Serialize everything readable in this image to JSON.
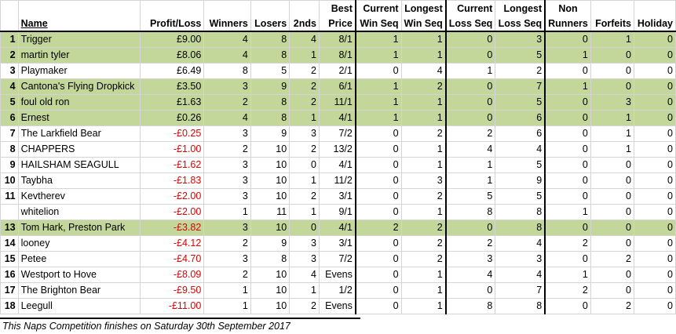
{
  "headers": {
    "name": "Name",
    "profit": "Profit/Loss",
    "winners": "Winners",
    "losers": "Losers",
    "seconds": "2nds",
    "best_top": "Best",
    "best_bottom": "Price",
    "cur_win_top": "Current",
    "cur_win_bottom": "Win Seq",
    "long_win_top": "Longest",
    "long_win_bottom": "Win Seq",
    "cur_loss_top": "Current",
    "cur_loss_bottom": "Loss Seq",
    "long_loss_top": "Longest",
    "long_loss_bottom": "Loss Seq",
    "nonrun_top": "Non",
    "nonrun_bottom": "Runners",
    "forfeits": "Forfeits",
    "holiday": "Holiday"
  },
  "rows": [
    {
      "pos": "1",
      "name": "Trigger",
      "profit": "£9.00",
      "w": "4",
      "l": "8",
      "s": "4",
      "best": "8/1",
      "cw": "1",
      "lw": "1",
      "cl": "0",
      "ll": "3",
      "nr": "0",
      "f": "1",
      "h": "0",
      "green": true,
      "neg": false
    },
    {
      "pos": "2",
      "name": "martin tyler",
      "profit": "£8.06",
      "w": "4",
      "l": "8",
      "s": "1",
      "best": "8/1",
      "cw": "1",
      "lw": "1",
      "cl": "0",
      "ll": "5",
      "nr": "1",
      "f": "0",
      "h": "0",
      "green": true,
      "neg": false
    },
    {
      "pos": "3",
      "name": "Playmaker",
      "profit": "£6.49",
      "w": "8",
      "l": "5",
      "s": "2",
      "best": "2/1",
      "cw": "0",
      "lw": "4",
      "cl": "1",
      "ll": "2",
      "nr": "0",
      "f": "0",
      "h": "0",
      "green": false,
      "neg": false
    },
    {
      "pos": "4",
      "name": "Cantona's Flying Dropkick",
      "profit": "£3.50",
      "w": "3",
      "l": "9",
      "s": "2",
      "best": "6/1",
      "cw": "1",
      "lw": "2",
      "cl": "0",
      "ll": "7",
      "nr": "1",
      "f": "0",
      "h": "0",
      "green": true,
      "neg": false
    },
    {
      "pos": "5",
      "name": "foul old ron",
      "profit": "£1.63",
      "w": "2",
      "l": "8",
      "s": "2",
      "best": "11/1",
      "cw": "1",
      "lw": "1",
      "cl": "0",
      "ll": "5",
      "nr": "0",
      "f": "3",
      "h": "0",
      "green": true,
      "neg": false
    },
    {
      "pos": "6",
      "name": "Ernest",
      "profit": "£0.26",
      "w": "4",
      "l": "8",
      "s": "1",
      "best": "4/1",
      "cw": "1",
      "lw": "1",
      "cl": "0",
      "ll": "6",
      "nr": "0",
      "f": "1",
      "h": "0",
      "green": true,
      "neg": false
    },
    {
      "pos": "7",
      "name": "The Larkfield Bear",
      "profit": "-£0.25",
      "w": "3",
      "l": "9",
      "s": "3",
      "best": "7/2",
      "cw": "0",
      "lw": "2",
      "cl": "2",
      "ll": "6",
      "nr": "0",
      "f": "1",
      "h": "0",
      "green": false,
      "neg": true
    },
    {
      "pos": "8",
      "name": "CHAPPERS",
      "profit": "-£1.00",
      "w": "2",
      "l": "10",
      "s": "2",
      "best": "13/2",
      "cw": "0",
      "lw": "1",
      "cl": "4",
      "ll": "4",
      "nr": "0",
      "f": "1",
      "h": "0",
      "green": false,
      "neg": true
    },
    {
      "pos": "9",
      "name": "HAILSHAM SEAGULL",
      "profit": "-£1.62",
      "w": "3",
      "l": "10",
      "s": "0",
      "best": "4/1",
      "cw": "0",
      "lw": "1",
      "cl": "1",
      "ll": "5",
      "nr": "0",
      "f": "0",
      "h": "0",
      "green": false,
      "neg": true
    },
    {
      "pos": "10",
      "name": "Taybha",
      "profit": "-£1.83",
      "w": "3",
      "l": "10",
      "s": "1",
      "best": "11/2",
      "cw": "0",
      "lw": "3",
      "cl": "1",
      "ll": "9",
      "nr": "0",
      "f": "0",
      "h": "0",
      "green": false,
      "neg": true
    },
    {
      "pos": "11",
      "name": "Kevtherev",
      "profit": "-£2.00",
      "w": "3",
      "l": "10",
      "s": "2",
      "best": "3/1",
      "cw": "0",
      "lw": "2",
      "cl": "5",
      "ll": "5",
      "nr": "0",
      "f": "0",
      "h": "0",
      "green": false,
      "neg": true
    },
    {
      "pos": "",
      "name": "whitelion",
      "profit": "-£2.00",
      "w": "1",
      "l": "11",
      "s": "1",
      "best": "9/1",
      "cw": "0",
      "lw": "1",
      "cl": "8",
      "ll": "8",
      "nr": "1",
      "f": "0",
      "h": "0",
      "green": false,
      "neg": true
    },
    {
      "pos": "13",
      "name": "Tom Hark, Preston Park",
      "profit": "-£3.82",
      "w": "3",
      "l": "10",
      "s": "0",
      "best": "4/1",
      "cw": "2",
      "lw": "2",
      "cl": "0",
      "ll": "8",
      "nr": "0",
      "f": "0",
      "h": "0",
      "green": true,
      "neg": true
    },
    {
      "pos": "14",
      "name": "looney",
      "profit": "-£4.12",
      "w": "2",
      "l": "9",
      "s": "3",
      "best": "3/1",
      "cw": "0",
      "lw": "2",
      "cl": "2",
      "ll": "4",
      "nr": "2",
      "f": "0",
      "h": "0",
      "green": false,
      "neg": true
    },
    {
      "pos": "15",
      "name": "Petee",
      "profit": "-£4.70",
      "w": "3",
      "l": "8",
      "s": "3",
      "best": "7/2",
      "cw": "0",
      "lw": "2",
      "cl": "3",
      "ll": "3",
      "nr": "0",
      "f": "2",
      "h": "0",
      "green": false,
      "neg": true
    },
    {
      "pos": "16",
      "name": "Westport to Hove",
      "profit": "-£8.09",
      "w": "2",
      "l": "10",
      "s": "4",
      "best": "Evens",
      "cw": "0",
      "lw": "1",
      "cl": "4",
      "ll": "4",
      "nr": "1",
      "f": "0",
      "h": "0",
      "green": false,
      "neg": true
    },
    {
      "pos": "17",
      "name": "The Brighton Bear",
      "profit": "-£9.50",
      "w": "1",
      "l": "10",
      "s": "1",
      "best": "1/2",
      "cw": "0",
      "lw": "1",
      "cl": "0",
      "ll": "7",
      "nr": "2",
      "f": "0",
      "h": "0",
      "green": false,
      "neg": true
    },
    {
      "pos": "18",
      "name": "Leegull",
      "profit": "-£11.00",
      "w": "1",
      "l": "10",
      "s": "2",
      "best": "Evens",
      "cw": "0",
      "lw": "1",
      "cl": "8",
      "ll": "8",
      "nr": "0",
      "f": "2",
      "h": "0",
      "green": false,
      "neg": true
    }
  ],
  "footer": "This Naps Competition finishes on Saturday 30th September 2017",
  "colors": {
    "green": "#c4d79b",
    "negative": "#e00000"
  }
}
